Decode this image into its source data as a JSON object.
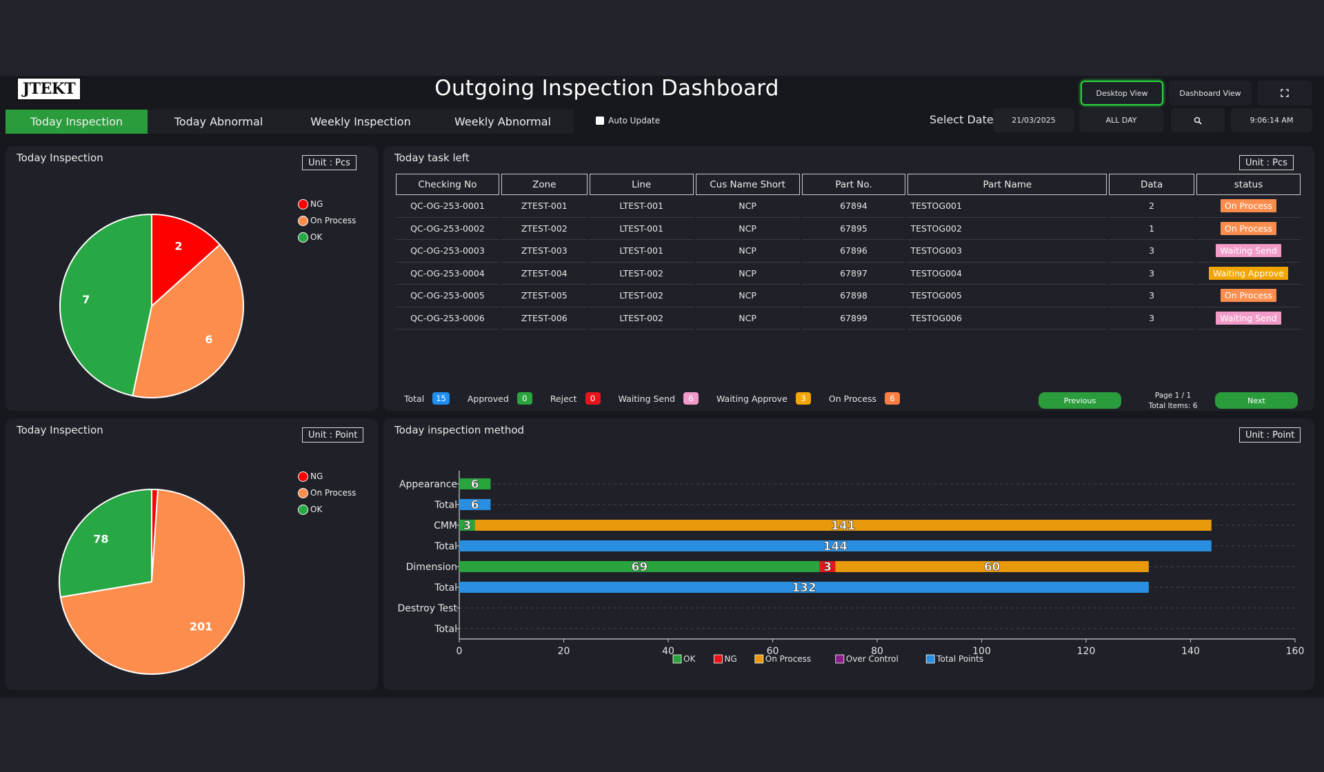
{
  "header": {
    "logo_text": "JTEKT",
    "title": "Outgoing Inspection Dashboard",
    "desktop_view": "Desktop View",
    "dashboard_view": "Dashboard View",
    "fullscreen_icon": "fullscreen-icon"
  },
  "tabs": [
    {
      "label": "Today Inspection",
      "active": true
    },
    {
      "label": "Today Abnormal",
      "active": false
    },
    {
      "label": "Weekly Inspection",
      "active": false
    },
    {
      "label": "Weekly Abnormal",
      "active": false
    }
  ],
  "controls": {
    "auto_update_label": "Auto Update",
    "auto_update_checked": false,
    "select_date_label": "Select Date",
    "date_value": "21/03/2025",
    "period_value": "ALL DAY",
    "search_icon": "search-icon",
    "time": "9:06:14 AM"
  },
  "pie_pcs": {
    "title": "Today Inspection",
    "unit": "Unit : Pcs",
    "legend": [
      "NG",
      "On Process",
      "OK"
    ],
    "chart_data": {
      "type": "pie",
      "categories": [
        "NG",
        "On Process",
        "OK"
      ],
      "values": [
        2,
        6,
        7
      ],
      "colors": [
        "#ff0000",
        "#fd8d4d",
        "#28a745"
      ]
    }
  },
  "pie_points": {
    "title": "Today Inspection",
    "unit": "Unit : Point",
    "legend": [
      "NG",
      "On Process",
      "OK"
    ],
    "chart_data": {
      "type": "pie",
      "categories": [
        "NG",
        "On Process",
        "OK"
      ],
      "values": [
        3,
        201,
        78
      ],
      "labels": [
        "",
        "201",
        "78"
      ],
      "colors": [
        "#ff0000",
        "#fd8d4d",
        "#28a745"
      ]
    }
  },
  "task": {
    "title": "Today task left",
    "unit": "Unit : Pcs",
    "columns": [
      "Checking No",
      "Zone",
      "Line",
      "Cus Name Short",
      "Part No.",
      "Part Name",
      "Data",
      "status"
    ],
    "rows": [
      {
        "checking_no": "QC-OG-253-0001",
        "zone": "ZTEST-001",
        "line": "LTEST-001",
        "cus": "NCP",
        "part_no": "67894",
        "part_name": "TESTOG001",
        "data": "2",
        "status": "On Process",
        "status_color": "#fd8d4d"
      },
      {
        "checking_no": "QC-OG-253-0002",
        "zone": "ZTEST-002",
        "line": "LTEST-001",
        "cus": "NCP",
        "part_no": "67895",
        "part_name": "TESTOG002",
        "data": "1",
        "status": "On Process",
        "status_color": "#fd8d4d"
      },
      {
        "checking_no": "QC-OG-253-0003",
        "zone": "ZTEST-003",
        "line": "LTEST-001",
        "cus": "NCP",
        "part_no": "67896",
        "part_name": "TESTOG003",
        "data": "3",
        "status": "Waiting Send",
        "status_color": "#f29bc9"
      },
      {
        "checking_no": "QC-OG-253-0004",
        "zone": "ZTEST-004",
        "line": "LTEST-002",
        "cus": "NCP",
        "part_no": "67897",
        "part_name": "TESTOG004",
        "data": "3",
        "status": "Waiting Approve",
        "status_color": "#f3a600"
      },
      {
        "checking_no": "QC-OG-253-0005",
        "zone": "ZTEST-005",
        "line": "LTEST-002",
        "cus": "NCP",
        "part_no": "67898",
        "part_name": "TESTOG005",
        "data": "3",
        "status": "On Process",
        "status_color": "#fd8d4d"
      },
      {
        "checking_no": "QC-OG-253-0006",
        "zone": "ZTEST-006",
        "line": "LTEST-002",
        "cus": "NCP",
        "part_no": "67899",
        "part_name": "TESTOG006",
        "data": "3",
        "status": "Waiting Send",
        "status_color": "#f29bc9"
      }
    ],
    "summary": [
      {
        "label": "Total",
        "count": "15",
        "color": "#1f8ef1"
      },
      {
        "label": "Approved",
        "count": "0",
        "color": "#2aa53e"
      },
      {
        "label": "Reject",
        "count": "0",
        "color": "#e8141b"
      },
      {
        "label": "Waiting Send",
        "count": "6",
        "color": "#f29bc9"
      },
      {
        "label": "Waiting Approve",
        "count": "3",
        "color": "#f3a600"
      },
      {
        "label": "On Process",
        "count": "6",
        "color": "#fd7f43"
      }
    ],
    "previous_label": "Previous",
    "next_label": "Next",
    "page_info": "Page 1 / 1",
    "total_items": "Total Items: 6"
  },
  "method": {
    "title": "Today inspection method",
    "unit": "Unit : Point",
    "chart_data": {
      "type": "bar",
      "orientation": "horizontal",
      "stacked": true,
      "categories": [
        "Appearance",
        "Total",
        "CMM",
        "Total",
        "Dimension",
        "Total",
        "Destroy Test",
        "Total"
      ],
      "series": [
        {
          "name": "OK",
          "color": "#2aa53e",
          "values": [
            6,
            0,
            3,
            0,
            69,
            0,
            0,
            0
          ]
        },
        {
          "name": "NG",
          "color": "#e8141b",
          "values": [
            0,
            0,
            0,
            0,
            3,
            0,
            0,
            0
          ]
        },
        {
          "name": "On Process",
          "color": "#e89a0c",
          "values": [
            0,
            0,
            141,
            0,
            60,
            0,
            0,
            0
          ]
        },
        {
          "name": "Over Control",
          "color": "#8b1d8b",
          "values": [
            0,
            0,
            0,
            0,
            0,
            0,
            0,
            0
          ]
        },
        {
          "name": "Total Points",
          "color": "#2a8fe0",
          "values": [
            0,
            6,
            0,
            144,
            0,
            132,
            0,
            0
          ]
        }
      ],
      "xlim": [
        0,
        160
      ],
      "xticks": [
        "0",
        "20",
        "40",
        "60",
        "80",
        "100",
        "120",
        "140",
        "160"
      ],
      "grid": true,
      "legend": "bottom"
    }
  }
}
